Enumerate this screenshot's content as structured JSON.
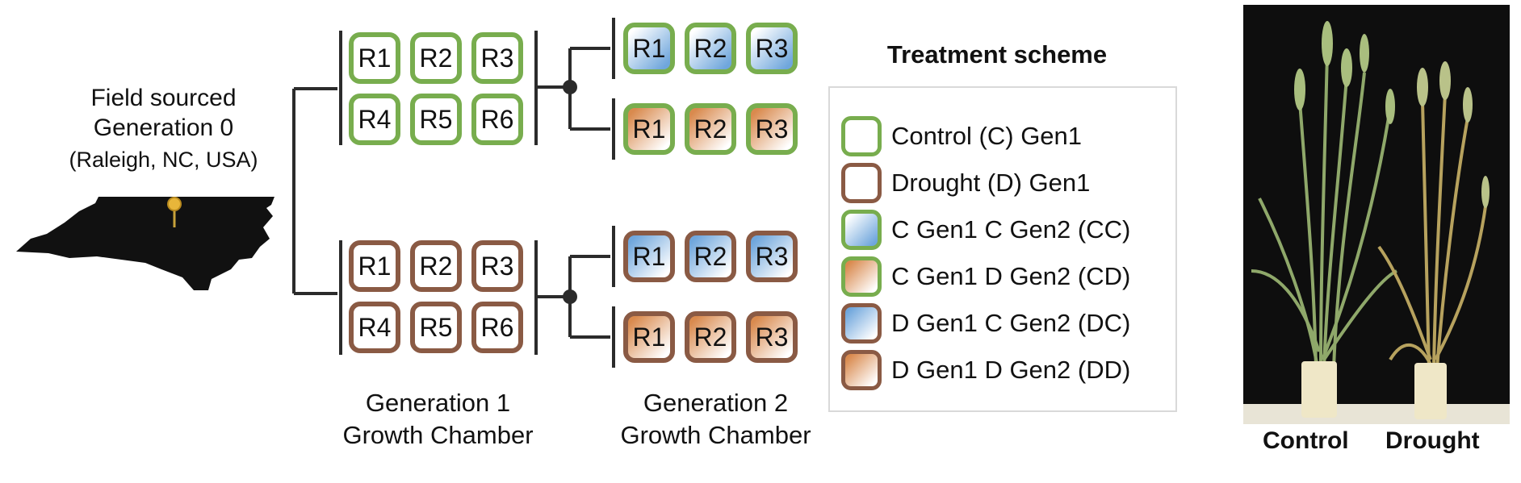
{
  "origin": {
    "line1": "Field sourced",
    "line2": "Generation  0",
    "line3": "(Raleigh, NC, USA)"
  },
  "generation1": {
    "label_line1": "Generation 1",
    "label_line2": "Growth Chamber",
    "control_reps": [
      "R1",
      "R2",
      "R3",
      "R4",
      "R5",
      "R6"
    ],
    "drought_reps": [
      "R1",
      "R2",
      "R3",
      "R4",
      "R5",
      "R6"
    ]
  },
  "generation2": {
    "label_line1": "Generation 2",
    "label_line2": "Growth Chamber",
    "cc_reps": [
      "R1",
      "R2",
      "R3"
    ],
    "cd_reps": [
      "R1",
      "R2",
      "R3"
    ],
    "dc_reps": [
      "R1",
      "R2",
      "R3"
    ],
    "dd_reps": [
      "R1",
      "R2",
      "R3"
    ]
  },
  "scheme": {
    "title": "Treatment scheme",
    "items": [
      {
        "label": "Control (C) Gen1"
      },
      {
        "label": "Drought (D) Gen1"
      },
      {
        "label": "C Gen1 C Gen2 (CC)"
      },
      {
        "label": "C Gen1 D Gen2 (CD)"
      },
      {
        "label": "D Gen1 C Gen2 (DC)"
      },
      {
        "label": "D Gen1 D Gen2 (DD)"
      }
    ]
  },
  "colors": {
    "control_border": "#78ad4e",
    "drought_border": "#8a5a44",
    "control_fill": "#6fa6dc",
    "drought_fill": "#d98a4e",
    "line": "#2b2b2b"
  },
  "photo": {
    "left_label": "Control",
    "right_label": "Drought"
  }
}
